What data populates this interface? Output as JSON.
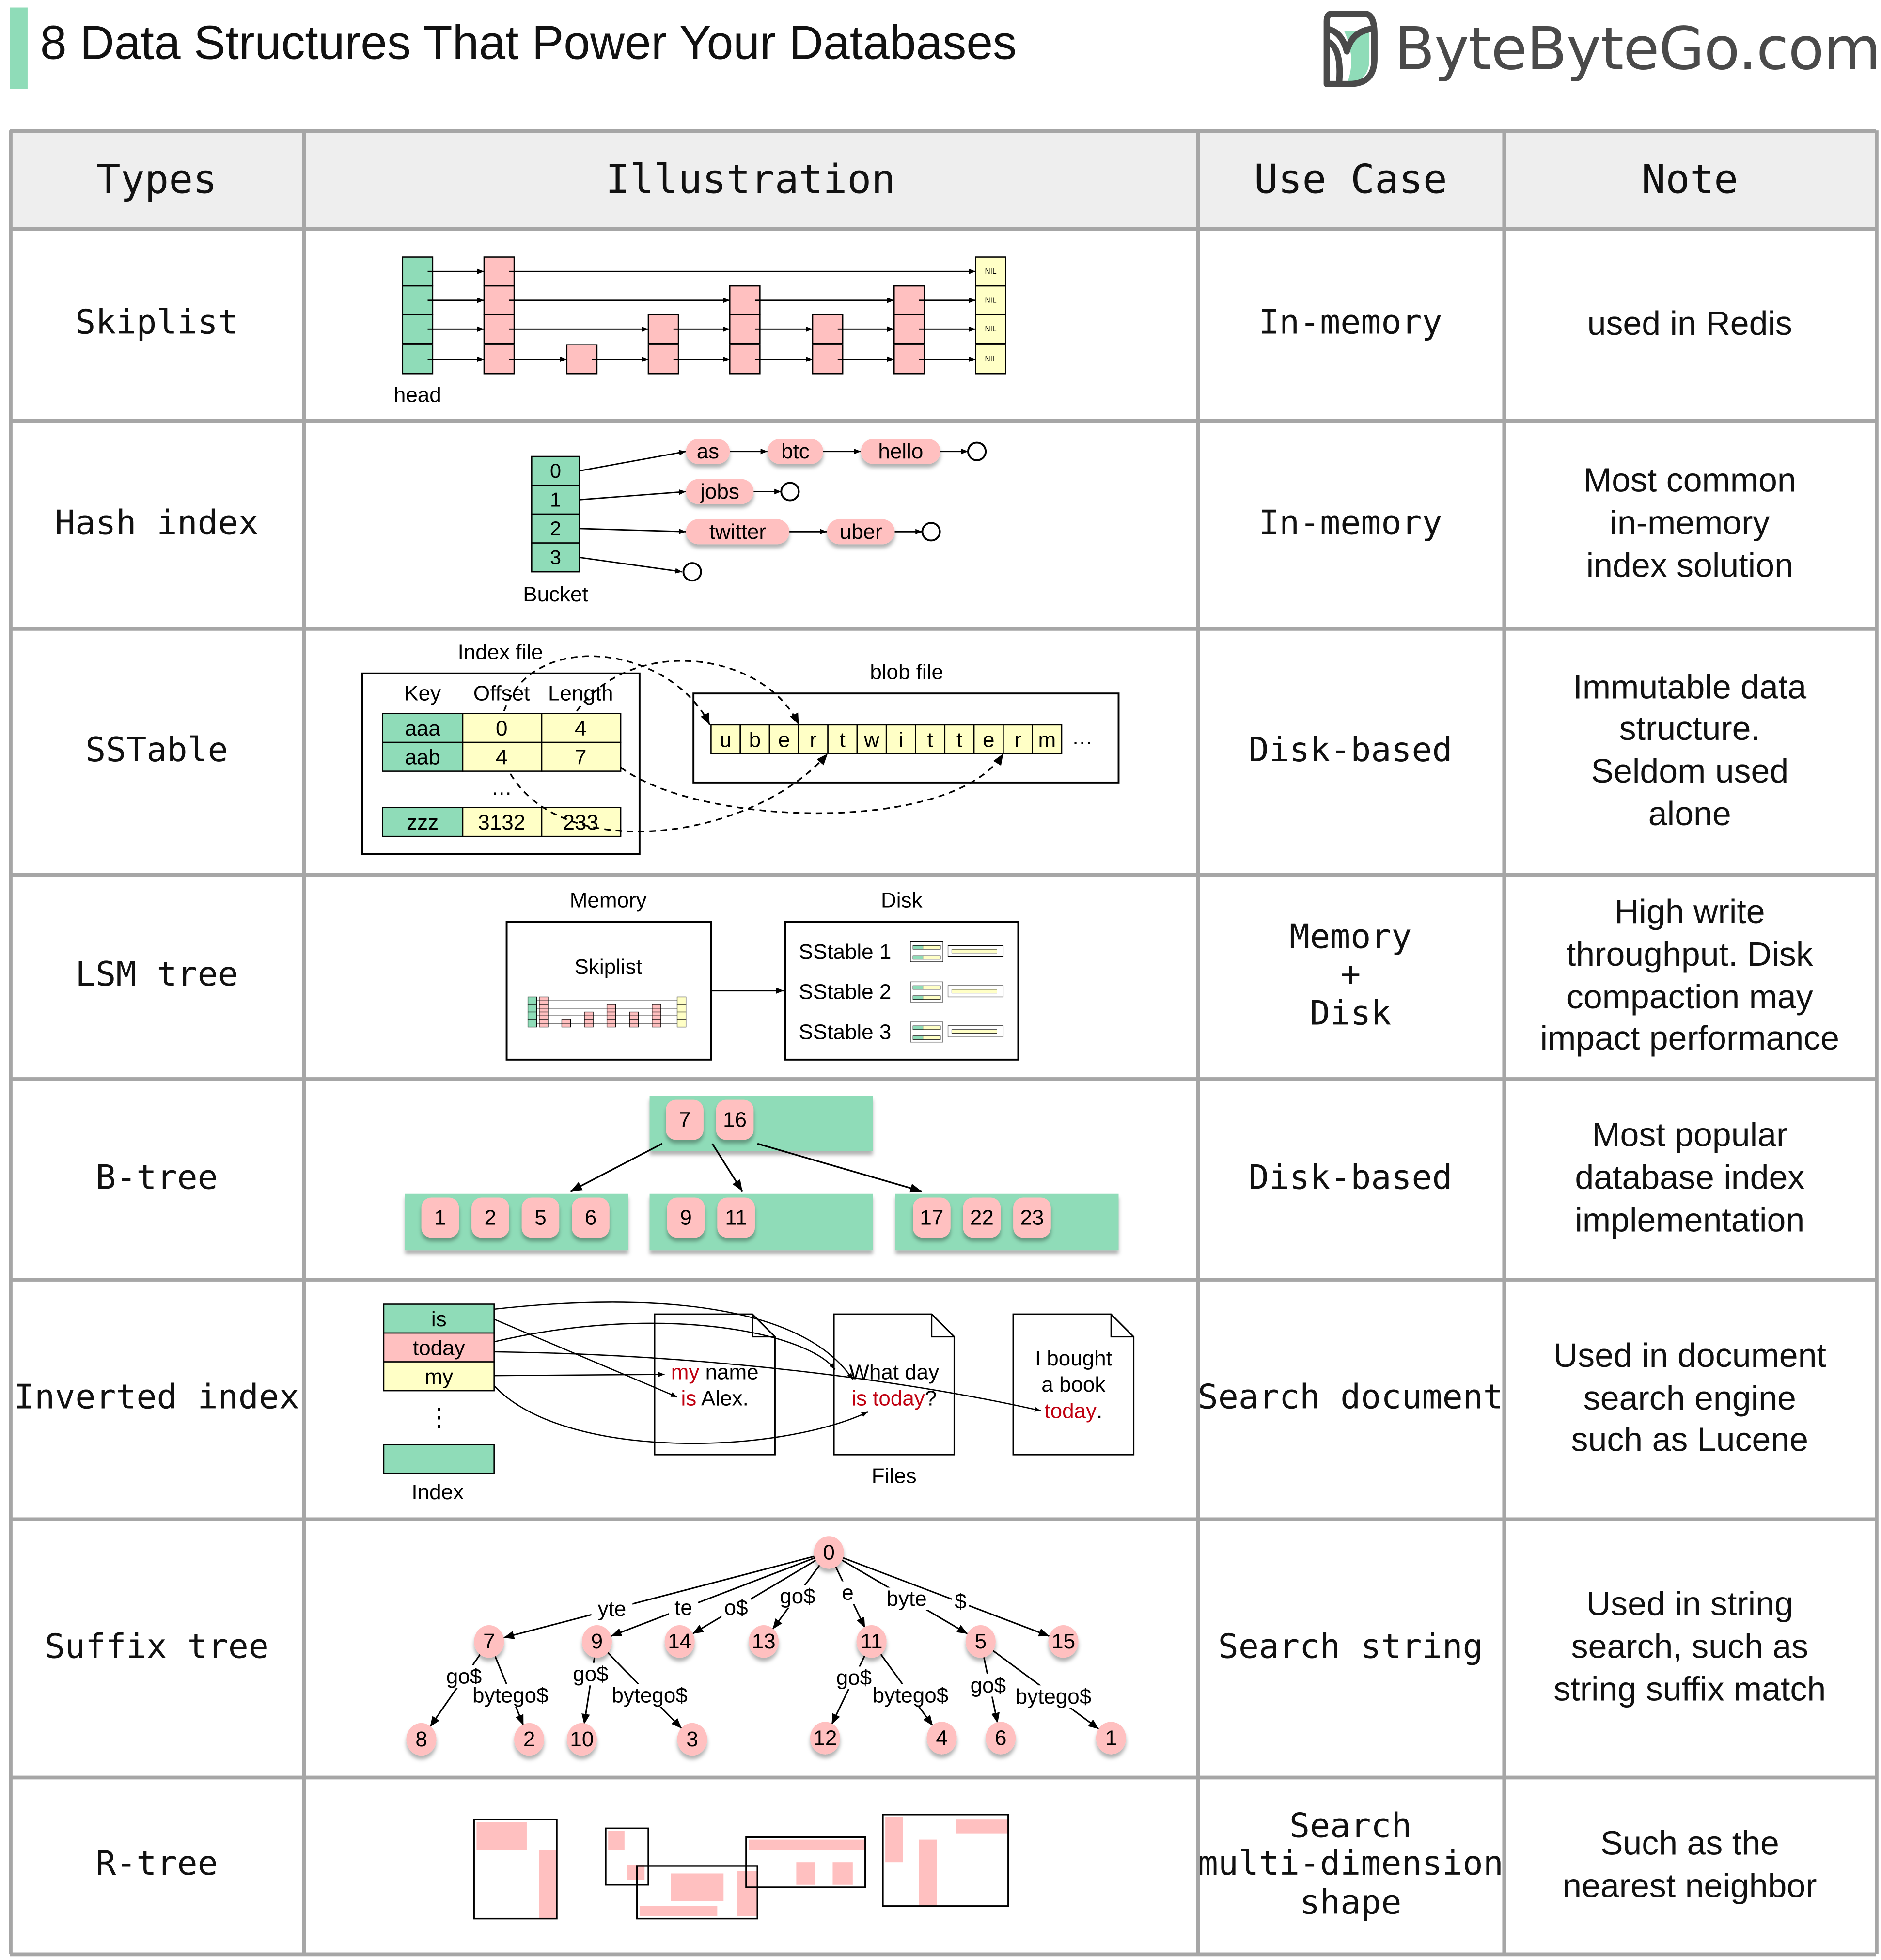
{
  "header": {
    "title": "8 Data Structures That Power Your Databases",
    "logo_text": "ByteByteGo.com",
    "accent_color": "#8fdcb8"
  },
  "columns": [
    "Types",
    "Illustration",
    "Use Case",
    "Note"
  ],
  "rows": [
    {
      "type": "Skiplist",
      "use_case": "In-memory",
      "note": "used in Redis"
    },
    {
      "type": "Hash index",
      "use_case": "In-memory",
      "note": "Most common\nin-memory\nindex solution"
    },
    {
      "type": "SSTable",
      "use_case": "Disk-based",
      "note": "Immutable data\nstructure.\nSeldom used\nalone"
    },
    {
      "type": "LSM tree",
      "use_case": "Memory\n+\nDisk",
      "note": "High write\nthroughput. Disk\ncompaction may\nimpact performance"
    },
    {
      "type": "B-tree",
      "use_case": "Disk-based",
      "note": "Most popular\ndatabase index\nimplementation"
    },
    {
      "type": "Inverted index",
      "use_case": "Search document",
      "note": "Used in document\nsearch engine\nsuch as Lucene"
    },
    {
      "type": "Suffix tree",
      "use_case": "Search string",
      "note": "Used in string\nsearch, such as\nstring suffix match"
    },
    {
      "type": "R-tree",
      "use_case": "Search\nmulti-dimension\nshape",
      "note": "Such as the\nnearest neighbor"
    }
  ],
  "colors": {
    "green": "#8fdcb8",
    "pink": "#ffc0c0",
    "yellow": "#ffffc6",
    "highlight_red": "#c00010",
    "grid": "#a6a6a6",
    "header_bg": "#eeeeee"
  },
  "illustrations": {
    "skiplist": {
      "head_label": "head",
      "nil_label": "NIL"
    },
    "hash_index": {
      "buckets": [
        "0",
        "1",
        "2",
        "3"
      ],
      "bucket_label": "Bucket",
      "chains": [
        [
          "as",
          "btc",
          "hello"
        ],
        [
          "jobs"
        ],
        [
          "twitter",
          "uber"
        ],
        []
      ]
    },
    "sstable": {
      "index_label": "Index file",
      "blob_label": "blob file",
      "columns": [
        "Key",
        "Offset",
        "Length"
      ],
      "rows": [
        [
          "aaa",
          "0",
          "4"
        ],
        [
          "aab",
          "4",
          "7"
        ],
        [
          "zzz",
          "3132",
          "233"
        ]
      ],
      "ellipsis": "…",
      "blob_chars": [
        "u",
        "b",
        "e",
        "r",
        "t",
        "w",
        "i",
        "t",
        "t",
        "e",
        "r",
        "m"
      ],
      "blob_ellipsis": "…"
    },
    "lsm": {
      "memory_label": "Memory",
      "disk_label": "Disk",
      "skiplist_label": "Skiplist",
      "sstables": [
        "SStable 1",
        "SStable 2",
        "SStable 3"
      ]
    },
    "btree": {
      "root": [
        "7",
        "16"
      ],
      "leaves": [
        [
          "1",
          "2",
          "5",
          "6"
        ],
        [
          "9",
          "11"
        ],
        [
          "17",
          "22",
          "23"
        ]
      ]
    },
    "inverted": {
      "terms": [
        "is",
        "today",
        "my"
      ],
      "ellipsis": "⋮",
      "index_label": "Index",
      "files_label": "Files",
      "docs": [
        [
          [
            {
              "t": "my",
              "hl": true
            },
            {
              "t": " name"
            }
          ],
          [
            {
              "t": "is",
              "hl": true
            },
            {
              "t": " Alex."
            }
          ]
        ],
        [
          [
            {
              "t": "What day"
            }
          ],
          [
            {
              "t": "is today",
              "hl": true
            },
            {
              "t": "?"
            }
          ]
        ],
        [
          [
            {
              "t": "I bought"
            }
          ],
          [
            {
              "t": "a book"
            }
          ],
          [
            {
              "t": "today",
              "hl": true
            },
            {
              "t": "."
            }
          ]
        ]
      ]
    },
    "suffix": {
      "nodes": [
        "0",
        "7",
        "9",
        "14",
        "13",
        "11",
        "5",
        "15",
        "8",
        "2",
        "10",
        "3",
        "12",
        "4",
        "6",
        "1"
      ],
      "edges": [
        [
          "0",
          "7",
          "yte"
        ],
        [
          "0",
          "9",
          "te"
        ],
        [
          "0",
          "14",
          "o$"
        ],
        [
          "0",
          "13",
          "go$"
        ],
        [
          "0",
          "11",
          "e"
        ],
        [
          "0",
          "5",
          "byte"
        ],
        [
          "0",
          "15",
          "$"
        ],
        [
          "7",
          "8",
          "go$"
        ],
        [
          "7",
          "2",
          "bytego$"
        ],
        [
          "9",
          "10",
          "go$"
        ],
        [
          "9",
          "3",
          "bytego$"
        ],
        [
          "11",
          "12",
          "go$"
        ],
        [
          "11",
          "4",
          "bytego$"
        ],
        [
          "5",
          "6",
          "go$"
        ],
        [
          "5",
          "1",
          "bytego$"
        ]
      ]
    }
  }
}
